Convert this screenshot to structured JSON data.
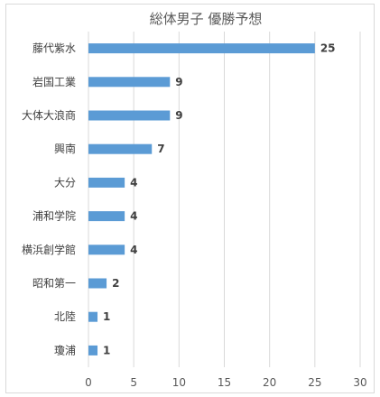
{
  "chart_data": {
    "type": "bar",
    "orientation": "horizontal",
    "title": "総体男子 優勝予想",
    "xlabel": "",
    "ylabel": "",
    "categories": [
      "藤代紫水",
      "岩国工業",
      "大体大浪商",
      "興南",
      "大分",
      "浦和学院",
      "横浜創学館",
      "昭和第一",
      "北陸",
      "瓊浦"
    ],
    "values": [
      25,
      9,
      9,
      7,
      4,
      4,
      4,
      2,
      1,
      1
    ],
    "xlim": [
      0,
      30
    ],
    "x_ticks": [
      0,
      5,
      10,
      15,
      20,
      25,
      30
    ],
    "grid": "vertical",
    "data_labels": true,
    "legend": "none",
    "bar_color": "#5b9bd5"
  }
}
